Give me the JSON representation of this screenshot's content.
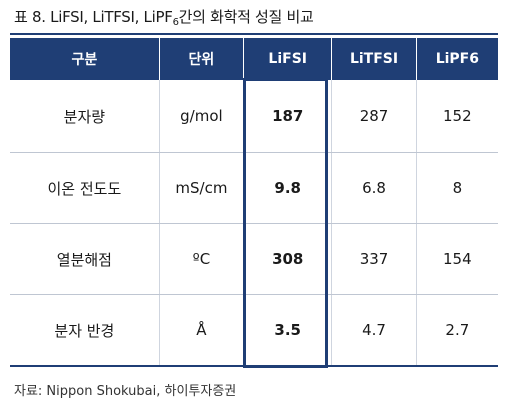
{
  "title": {
    "prefix": "표 8. LiFSI, LiTFSI, LiPF",
    "subscript": "6",
    "suffix": "간의 화학적 성질 비교"
  },
  "table": {
    "headers": [
      "구분",
      "단위",
      "LiFSI",
      "LiTFSI",
      "LiPF6"
    ],
    "rows": [
      {
        "label": "분자량",
        "unit": "g/mol",
        "lifsi": "187",
        "litfsi": "287",
        "lipf6": "152"
      },
      {
        "label": "이온 전도도",
        "unit": "mS/cm",
        "lifsi": "9.8",
        "litfsi": "6.8",
        "lipf6": "8"
      },
      {
        "label": "열분해점",
        "unit": "ºC",
        "lifsi": "308",
        "litfsi": "337",
        "lipf6": "154"
      },
      {
        "label": "분자 반경",
        "unit": "Å",
        "lifsi": "3.5",
        "litfsi": "4.7",
        "lipf6": "2.7"
      }
    ]
  },
  "source": "자료: Nippon Shokubai, 하이투자증권",
  "colors": {
    "header_bg": "#1f3e75",
    "highlight_border": "#1f3e75"
  }
}
